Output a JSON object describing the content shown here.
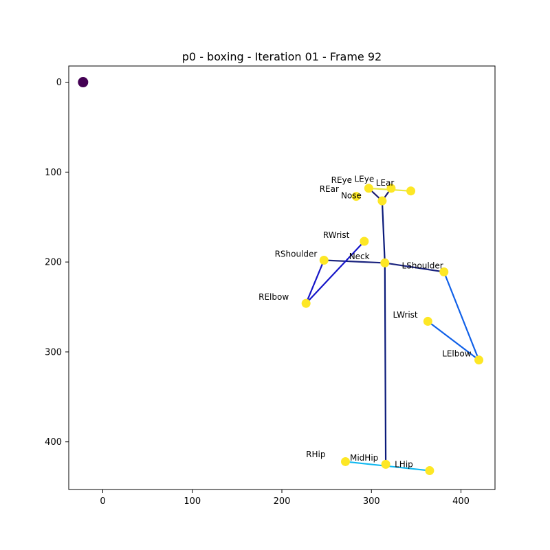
{
  "chart_data": {
    "type": "scatter",
    "title": "p0 - boxing - Iteration 01 - Frame 92",
    "xlim": [
      -38,
      438
    ],
    "ylim": [
      453,
      -18
    ],
    "y_inverted": true,
    "grid": false,
    "x_ticks": [
      0,
      100,
      200,
      300,
      400
    ],
    "y_ticks": [
      0,
      100,
      200,
      300,
      400
    ],
    "x_tick_labels": [
      "0",
      "100",
      "200",
      "300",
      "400"
    ],
    "y_tick_labels": [
      "0",
      "100",
      "200",
      "300",
      "400"
    ],
    "reference_point": {
      "x": -22,
      "y": 0,
      "color": "#440154"
    },
    "point_color": "#fde725",
    "keypoints": [
      {
        "name": "Nose",
        "x": 312,
        "y": 132
      },
      {
        "name": "LEye",
        "x": 297,
        "y": 118
      },
      {
        "name": "REye",
        "x": 322,
        "y": 118
      },
      {
        "name": "LEar",
        "x": 344,
        "y": 121
      },
      {
        "name": "REar",
        "x": 283,
        "y": 127
      },
      {
        "name": "Neck",
        "x": 315,
        "y": 201
      },
      {
        "name": "RShoulder",
        "x": 247,
        "y": 198
      },
      {
        "name": "LShoulder",
        "x": 381,
        "y": 211
      },
      {
        "name": "RElbow",
        "x": 227,
        "y": 246
      },
      {
        "name": "LElbow",
        "x": 420,
        "y": 309
      },
      {
        "name": "RWrist",
        "x": 292,
        "y": 177
      },
      {
        "name": "LWrist",
        "x": 363,
        "y": 266
      },
      {
        "name": "MidHip",
        "x": 316,
        "y": 425
      },
      {
        "name": "RHip",
        "x": 271,
        "y": 422
      },
      {
        "name": "LHip",
        "x": 365,
        "y": 432
      }
    ],
    "labels": [
      {
        "text": "REye",
        "x": 255,
        "y": 112
      },
      {
        "text": "LEye",
        "x": 281,
        "y": 111
      },
      {
        "text": "LEar",
        "x": 305,
        "y": 115
      },
      {
        "text": "REar",
        "x": 242,
        "y": 122
      },
      {
        "text": "Nose",
        "x": 266,
        "y": 129
      },
      {
        "text": "RWrist",
        "x": 246,
        "y": 173
      },
      {
        "text": "RShoulder",
        "x": 192,
        "y": 194
      },
      {
        "text": "Neck",
        "x": 275,
        "y": 197
      },
      {
        "text": "LShoulder",
        "x": 334,
        "y": 207
      },
      {
        "text": "RElbow",
        "x": 174,
        "y": 242
      },
      {
        "text": "LWrist",
        "x": 324,
        "y": 262
      },
      {
        "text": "LElbow",
        "x": 379,
        "y": 305
      },
      {
        "text": "RHip",
        "x": 227,
        "y": 417
      },
      {
        "text": "MidHip",
        "x": 276,
        "y": 421
      },
      {
        "text": "LHip",
        "x": 326,
        "y": 428
      }
    ],
    "bones": [
      {
        "from": "Nose",
        "to": "LEye",
        "color": "#1a1a6e"
      },
      {
        "from": "Nose",
        "to": "REye",
        "color": "#1a1a6e"
      },
      {
        "from": "Nose",
        "to": "Neck",
        "color": "#0a1a7a"
      },
      {
        "from": "Neck",
        "to": "MidHip",
        "color": "#0a1a7a"
      },
      {
        "from": "RShoulder",
        "to": "Neck",
        "color": "#1a237e"
      },
      {
        "from": "Neck",
        "to": "LShoulder",
        "color": "#1a237e"
      },
      {
        "from": "RShoulder",
        "to": "RElbow",
        "color": "#1515c8"
      },
      {
        "from": "RElbow",
        "to": "RWrist",
        "color": "#1515c8"
      },
      {
        "from": "LShoulder",
        "to": "LElbow",
        "color": "#1060e8"
      },
      {
        "from": "LElbow",
        "to": "LWrist",
        "color": "#1060e8"
      },
      {
        "from": "RHip",
        "to": "LHip",
        "color": "#10b8f0"
      },
      {
        "from": "LEye",
        "to": "LEar",
        "color": "#e8e840"
      }
    ]
  }
}
